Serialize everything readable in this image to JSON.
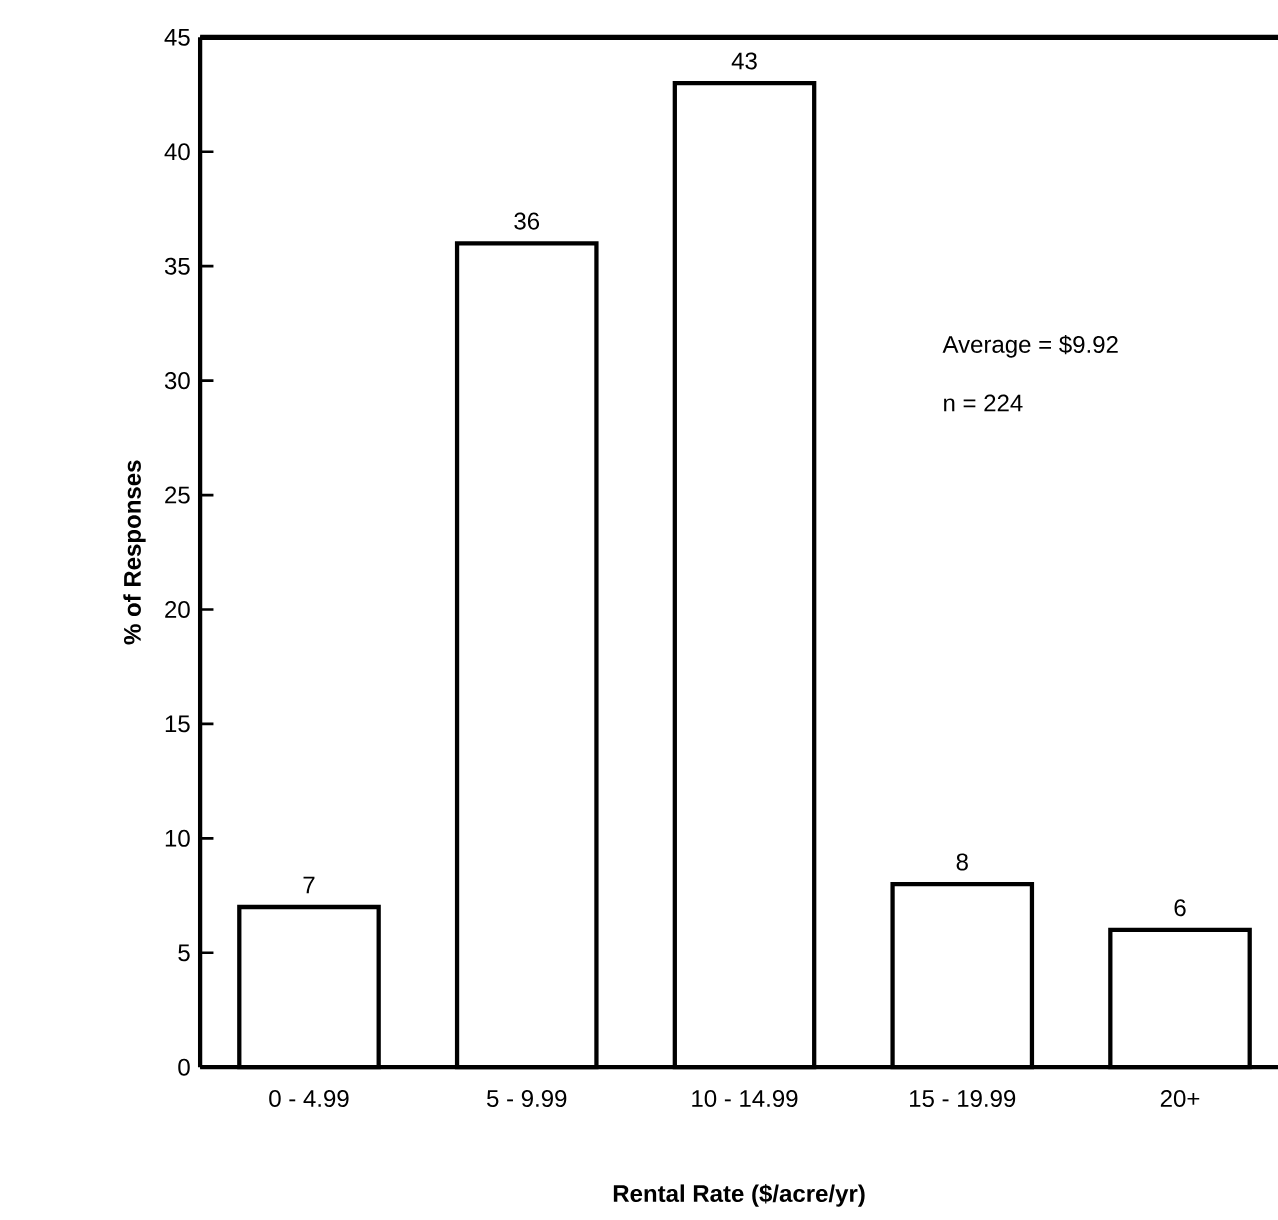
{
  "chart_data": {
    "type": "bar",
    "xlabel": "Rental Rate ($/acre/yr)",
    "ylabel": "% of Responses",
    "categories": [
      "0 - 4.99",
      "5 - 9.99",
      "10 - 14.99",
      "15 - 19.99",
      "20+"
    ],
    "values": [
      7,
      36,
      43,
      8,
      6
    ],
    "color": "#ffffff",
    "data_labels": true,
    "ylim": [
      0,
      45
    ],
    "yticks": [
      0,
      5,
      10,
      15,
      20,
      25,
      30,
      35,
      40,
      45
    ],
    "annotations": [
      "Average = $9.92",
      "n = 224"
    ],
    "grid": false
  }
}
